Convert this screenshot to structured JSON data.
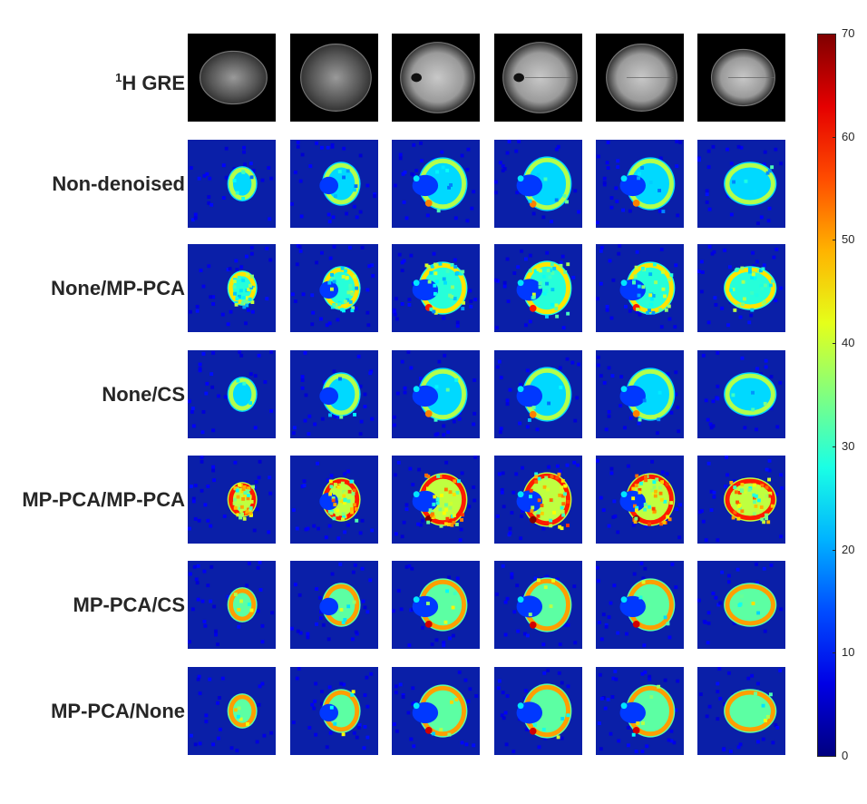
{
  "figure": {
    "row_labels": [
      {
        "sup": "1",
        "text": "H GRE"
      },
      {
        "sup": "",
        "text": "Non-denoised"
      },
      {
        "sup": "",
        "text": "None/MP-PCA"
      },
      {
        "sup": "",
        "text": "None/CS"
      },
      {
        "sup": "",
        "text": "MP-PCA/MP-PCA"
      },
      {
        "sup": "",
        "text": "MP-PCA/CS"
      },
      {
        "sup": "",
        "text": "MP-PCA/None"
      }
    ],
    "columns": 6,
    "row_types": [
      "anatomical",
      "map",
      "map",
      "map",
      "map",
      "map",
      "map"
    ],
    "row_intensity": [
      0,
      0.45,
      0.55,
      0.45,
      0.75,
      0.62,
      0.62
    ],
    "row_noise": [
      0,
      0.05,
      0.25,
      0.03,
      0.35,
      0.04,
      0.04
    ],
    "colorbar": {
      "colormap": "jet",
      "ticks": [
        "70",
        "60",
        "50",
        "40",
        "30",
        "20",
        "10",
        "0"
      ],
      "min": 0,
      "max": 70
    },
    "colors": {
      "background": "#ffffff",
      "text": "#262626",
      "anatomical_bg": "#000000",
      "map_bg": "#0a1fa8"
    }
  }
}
